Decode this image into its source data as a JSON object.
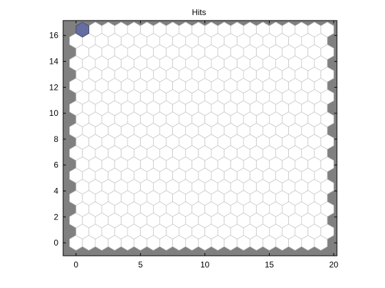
{
  "chart_data": {
    "type": "heatmap",
    "subtype": "som-hit-hexagons",
    "title": "Hits",
    "xlabel": "",
    "ylabel": "",
    "xlim": [
      -1,
      20.25
    ],
    "ylim": [
      -1,
      17.15
    ],
    "xticks": [
      0,
      5,
      10,
      15,
      20
    ],
    "yticks": [
      0,
      2,
      4,
      6,
      8,
      10,
      12,
      14,
      16
    ],
    "grid": {
      "rows": 20,
      "cols": 20,
      "row_step": 0.866,
      "odd_row_offset": 0.5
    },
    "hits": [
      {
        "x": 0.5,
        "y": 16.45,
        "relative_size": 1.0
      }
    ],
    "colors": {
      "background": "#808080",
      "neuron_fill": "#ffffff",
      "neuron_edge": "#c8c8c8",
      "hit_fill": "#646ea0",
      "hit_edge": "#3c3c5a"
    },
    "grid_on": false,
    "legend": "none"
  }
}
